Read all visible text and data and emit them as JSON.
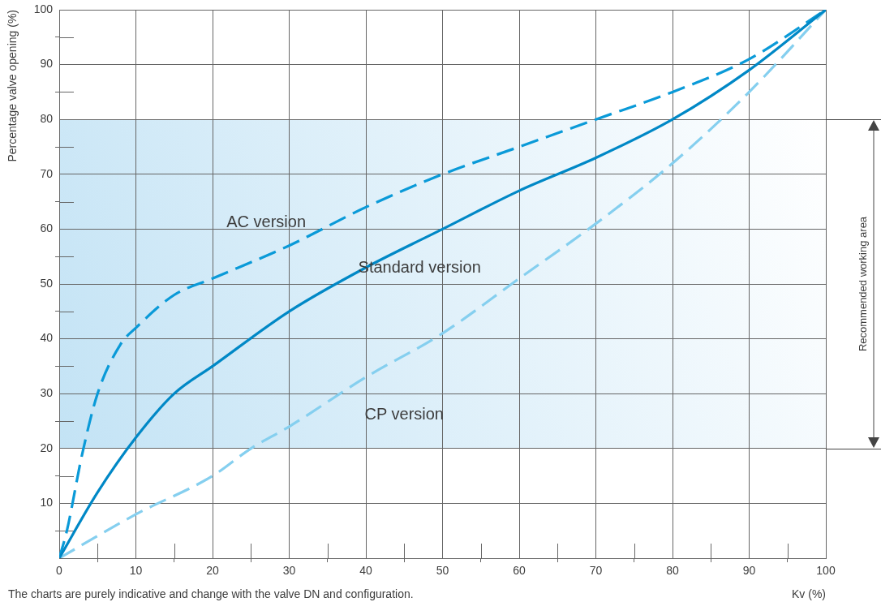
{
  "chart_data": {
    "type": "line",
    "xlabel": "Kv (%)",
    "ylabel": "Percentage valve opening (%)",
    "xlim": [
      0,
      100
    ],
    "ylim": [
      0,
      100
    ],
    "xticks": [
      0,
      {
        "value": 5,
        "label": null
      },
      10,
      {
        "value": 15,
        "label": null
      },
      20,
      {
        "value": 25,
        "label": null
      },
      30,
      {
        "value": 35,
        "label": null
      },
      40,
      {
        "value": 45,
        "label": null
      },
      50,
      {
        "value": 55,
        "label": null
      },
      60,
      {
        "value": 65,
        "label": null
      },
      70,
      {
        "value": 75,
        "label": null
      },
      80,
      {
        "value": 85,
        "label": null
      },
      90,
      {
        "value": 95,
        "label": null
      },
      100
    ],
    "yticks": [
      {
        "value": 0,
        "label": null
      },
      {
        "value": 5,
        "label": null
      },
      10,
      {
        "value": 15,
        "label": null
      },
      20,
      {
        "value": 25,
        "label": null
      },
      30,
      {
        "value": 35,
        "label": null
      },
      40,
      {
        "value": 45,
        "label": null
      },
      50,
      {
        "value": 55,
        "label": null
      },
      60,
      {
        "value": 65,
        "label": null
      },
      70,
      {
        "value": 75,
        "label": null
      },
      80,
      {
        "value": 85,
        "label": null
      },
      90,
      {
        "value": 95,
        "label": null
      },
      100
    ],
    "grid": true,
    "marker": "none",
    "series": [
      {
        "name": "Standard version",
        "color": "#0088c6",
        "line_style": "solid",
        "x": [
          0,
          5,
          10,
          15,
          20,
          30,
          40,
          50,
          60,
          70,
          80,
          90,
          100
        ],
        "values": [
          0,
          12,
          22,
          30,
          35,
          45,
          53,
          60,
          67,
          73,
          80,
          89,
          100
        ]
      },
      {
        "name": "AC version",
        "color": "#0a9ad8",
        "line_style": "dashed",
        "x": [
          0,
          1,
          3,
          5,
          8,
          10,
          15,
          20,
          30,
          40,
          50,
          60,
          70,
          80,
          90,
          100
        ],
        "values": [
          0,
          5,
          19,
          30,
          39,
          42,
          48,
          51,
          57,
          64,
          70,
          75,
          80,
          85,
          91,
          100
        ]
      },
      {
        "name": "CP version",
        "color": "#85cfef",
        "line_style": "dashed",
        "x": [
          0,
          10,
          20,
          25,
          30,
          40,
          50,
          60,
          70,
          80,
          90,
          100
        ],
        "values": [
          0,
          8,
          15,
          20,
          24,
          33,
          41,
          51,
          61,
          72,
          85,
          100
        ]
      }
    ],
    "bands": [
      {
        "axis": "y",
        "from": 20,
        "to": 80,
        "label": "Recommended working area",
        "color": "#c3e3f5"
      }
    ],
    "annotations": [
      "The charts are purely indicative and change with the valve DN and configuration."
    ]
  }
}
